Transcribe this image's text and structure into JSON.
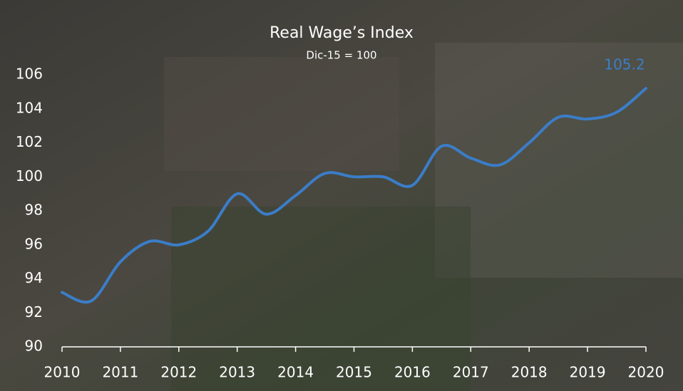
{
  "chart_data": {
    "type": "line",
    "title": "Real Wage’s Index",
    "subtitle": "Dic-15 = 100",
    "x": [
      2010,
      2010.5,
      2011,
      2011.5,
      2012,
      2012.5,
      2013,
      2013.5,
      2014,
      2014.5,
      2015,
      2015.5,
      2016,
      2016.5,
      2017,
      2017.5,
      2018,
      2018.5,
      2019,
      2019.5,
      2020
    ],
    "series": [
      {
        "name": "Real Wage’s Index",
        "color": "#3b7dc8",
        "values": [
          93.2,
          92.7,
          95.0,
          96.2,
          96.0,
          96.8,
          99.0,
          97.8,
          98.9,
          100.2,
          100.0,
          100.0,
          99.5,
          101.8,
          101.1,
          100.7,
          102.0,
          103.5,
          103.4,
          103.8,
          105.2
        ]
      }
    ],
    "xlim": [
      2010,
      2020
    ],
    "xticks": [
      2010,
      2011,
      2012,
      2013,
      2014,
      2015,
      2016,
      2017,
      2018,
      2019,
      2020
    ],
    "ylim": [
      90,
      106
    ],
    "yticks": [
      90,
      92,
      94,
      96,
      98,
      100,
      102,
      104,
      106
    ],
    "grid": false
  }
}
